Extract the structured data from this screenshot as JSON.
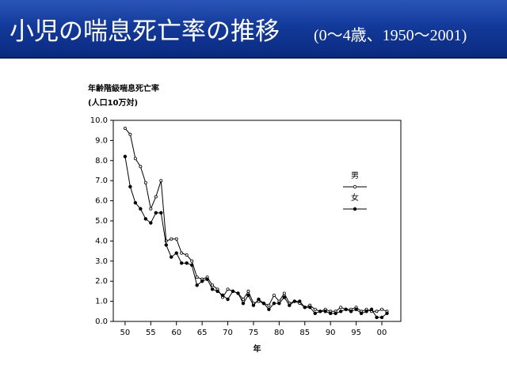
{
  "chart_data": {
    "type": "line",
    "title": "小児の喘息死亡率の推移",
    "subtitle": "(0〜4歳、1950〜2001)",
    "ylabel": [
      "年齢階級喘息死亡率",
      "(人口10万対)"
    ],
    "xlabel": "年",
    "x": [
      1950,
      1951,
      1952,
      1953,
      1954,
      1955,
      1956,
      1957,
      1958,
      1959,
      1960,
      1961,
      1962,
      1963,
      1964,
      1965,
      1966,
      1967,
      1968,
      1969,
      1970,
      1971,
      1972,
      1973,
      1974,
      1975,
      1976,
      1977,
      1978,
      1979,
      1980,
      1981,
      1982,
      1983,
      1984,
      1985,
      1986,
      1987,
      1988,
      1989,
      1990,
      1991,
      1992,
      1993,
      1994,
      1995,
      1996,
      1997,
      1998,
      1999,
      2000,
      2001
    ],
    "series": [
      {
        "name": "男",
        "color": "#000000",
        "values": [
          9.6,
          9.3,
          8.1,
          7.7,
          6.9,
          5.6,
          6.2,
          7.0,
          4.0,
          4.1,
          4.1,
          3.4,
          3.3,
          3.0,
          2.2,
          2.1,
          2.2,
          1.8,
          1.6,
          1.2,
          1.6,
          1.5,
          1.4,
          1.1,
          1.5,
          0.9,
          1.0,
          0.9,
          0.8,
          1.3,
          1.0,
          1.4,
          0.9,
          1.0,
          0.9,
          0.7,
          0.8,
          0.6,
          0.5,
          0.6,
          0.5,
          0.5,
          0.7,
          0.6,
          0.6,
          0.7,
          0.5,
          0.6,
          0.5,
          0.5,
          0.6,
          0.5
        ]
      },
      {
        "name": "女",
        "color": "#000000",
        "values": [
          8.2,
          6.7,
          5.9,
          5.6,
          5.1,
          4.9,
          5.4,
          5.4,
          3.8,
          3.2,
          3.4,
          2.9,
          2.9,
          2.8,
          1.8,
          2.0,
          2.1,
          1.6,
          1.5,
          1.3,
          1.1,
          1.5,
          1.4,
          0.9,
          1.3,
          0.8,
          1.1,
          0.9,
          0.6,
          0.9,
          0.9,
          1.2,
          0.8,
          1.0,
          1.0,
          0.7,
          0.7,
          0.4,
          0.5,
          0.5,
          0.4,
          0.4,
          0.5,
          0.6,
          0.5,
          0.6,
          0.4,
          0.5,
          0.6,
          0.2,
          0.2,
          0.4
        ]
      }
    ],
    "xlim": [
      1947.7,
      2003.7
    ],
    "ylim": [
      0,
      10
    ],
    "xticks": [
      {
        "value": 1950,
        "label": "50"
      },
      {
        "value": 1955,
        "label": "55"
      },
      {
        "value": 1960,
        "label": "60"
      },
      {
        "value": 1965,
        "label": "65"
      },
      {
        "value": 1970,
        "label": "70"
      },
      {
        "value": 1975,
        "label": "75"
      },
      {
        "value": 1980,
        "label": "80"
      },
      {
        "value": 1985,
        "label": "85"
      },
      {
        "value": 1990,
        "label": "90"
      },
      {
        "value": 1995,
        "label": "95"
      },
      {
        "value": 2000,
        "label": "00"
      }
    ],
    "yticks": [
      {
        "value": 0,
        "label": "0.0"
      },
      {
        "value": 1,
        "label": "1.0"
      },
      {
        "value": 2,
        "label": "2.0"
      },
      {
        "value": 3,
        "label": "3.0"
      },
      {
        "value": 4,
        "label": "4.0"
      },
      {
        "value": 5,
        "label": "5.0"
      },
      {
        "value": 6,
        "label": "6.0"
      },
      {
        "value": 7,
        "label": "7.0"
      },
      {
        "value": 8,
        "label": "8.0"
      },
      {
        "value": 9,
        "label": "9.0"
      },
      {
        "value": 10,
        "label": "10.0"
      }
    ]
  }
}
